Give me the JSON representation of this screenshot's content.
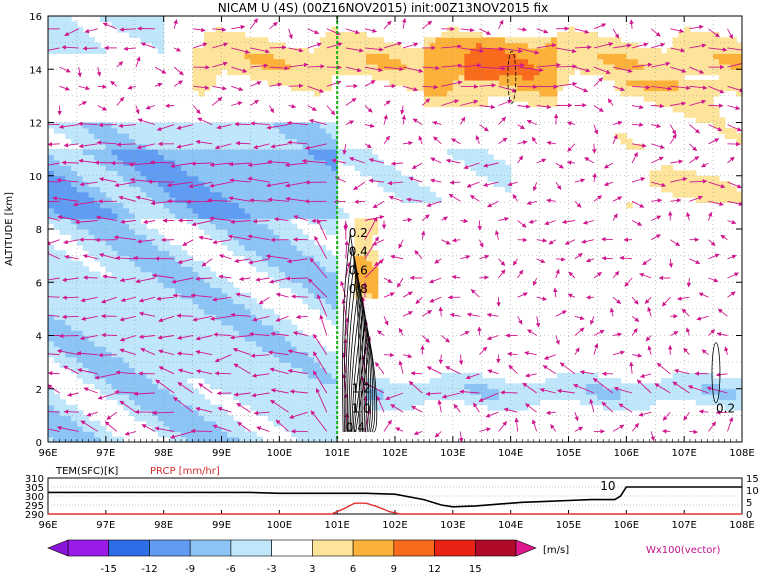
{
  "title": "NICAM U (4S)  (00Z16NOV2015)  init:00Z13NOV2015  fix",
  "colors": {
    "neg15": "#9a1ae8",
    "neg12": "#2c6ee8",
    "neg9": "#5f9cf2",
    "neg6": "#8cc4f6",
    "neg3": "#bfe6fa",
    "zero": "#ffffff",
    "pos3": "#fde49a",
    "pos6": "#fcb23a",
    "pos9": "#f86a1c",
    "pos12": "#e82414",
    "pos15": "#b00a2a",
    "arrow": "#d0168e",
    "green": "#10b010",
    "prcp": "#e03030"
  },
  "chart_data": [
    {
      "type": "heatmap",
      "name": "U cross-section",
      "title": "NICAM U (4S)  (00Z16NOV2015)  init:00Z13NOV2015  fix",
      "ylabel": "ALTITUDE [km]",
      "xlim": [
        96,
        108
      ],
      "ylim": [
        0,
        16
      ],
      "x_ticks": [
        "96E",
        "97E",
        "98E",
        "99E",
        "100E",
        "101E",
        "102E",
        "103E",
        "104E",
        "105E",
        "106E",
        "107E",
        "108E"
      ],
      "y_ticks": [
        "0",
        "2",
        "4",
        "6",
        "8",
        "10",
        "12",
        "14",
        "16"
      ],
      "grid": true,
      "marker_line_lon": 101.0,
      "contour_labels": [
        {
          "text": "0.2",
          "lon": 101.2,
          "alt": 7.7
        },
        {
          "text": "0.4",
          "lon": 101.2,
          "alt": 7.0
        },
        {
          "text": "0.6",
          "lon": 101.2,
          "alt": 6.3
        },
        {
          "text": "0.8",
          "lon": 101.2,
          "alt": 5.6
        },
        {
          "text": "1.2",
          "lon": 101.25,
          "alt": 1.85
        },
        {
          "text": "1.0",
          "lon": 101.25,
          "alt": 1.1
        },
        {
          "text": "0.4",
          "lon": 101.15,
          "alt": 0.4
        },
        {
          "text": "0.2",
          "lon": 107.55,
          "alt": 1.1
        }
      ]
    },
    {
      "type": "line",
      "name": "surface series",
      "legend": [
        "TEM(SFC)[K]",
        "PRCP [mm/hr]"
      ],
      "y_ticks_left": [
        "290",
        "295",
        "300",
        "305",
        "310"
      ],
      "y_ticks_right": [
        "0",
        "5",
        "10",
        "15"
      ],
      "ylim_left": [
        290,
        310
      ],
      "ylim_right": [
        0,
        15
      ],
      "annotation": "10",
      "x_ticks": [
        "96E",
        "97E",
        "98E",
        "99E",
        "100E",
        "101E",
        "102E",
        "103E",
        "104E",
        "105E",
        "106E",
        "107E",
        "108E"
      ],
      "series": [
        {
          "name": "TEM(SFC)[K]",
          "x": [
            96,
            97,
            98,
            99,
            99.5,
            100,
            100.5,
            101,
            101.5,
            102,
            102.5,
            102.8,
            103,
            103.4,
            103.8,
            104.2,
            104.6,
            105,
            105.4,
            105.8,
            105.9,
            106,
            106.3,
            107,
            108
          ],
          "y": [
            302,
            302,
            302,
            302,
            302,
            301.5,
            301.5,
            301.5,
            301.5,
            301,
            298,
            295,
            294,
            294.5,
            295.5,
            296.5,
            297,
            297.5,
            298,
            298,
            300,
            305,
            305,
            305,
            305
          ]
        },
        {
          "name": "PRCP [mm/hr]",
          "x": [
            96,
            100.9,
            101.1,
            101.3,
            101.5,
            101.7,
            101.9,
            102.1,
            108
          ],
          "y": [
            0,
            0,
            2,
            4.5,
            4.5,
            3,
            1,
            0,
            0
          ]
        }
      ]
    },
    {
      "type": "heatmap",
      "name": "colorbar",
      "ticks": [
        "-15",
        "-12",
        "-9",
        "-6",
        "-3",
        "3",
        "6",
        "9",
        "12",
        "15"
      ],
      "unit": "[m/s]",
      "vector_label": "Wx100(vector)"
    }
  ]
}
